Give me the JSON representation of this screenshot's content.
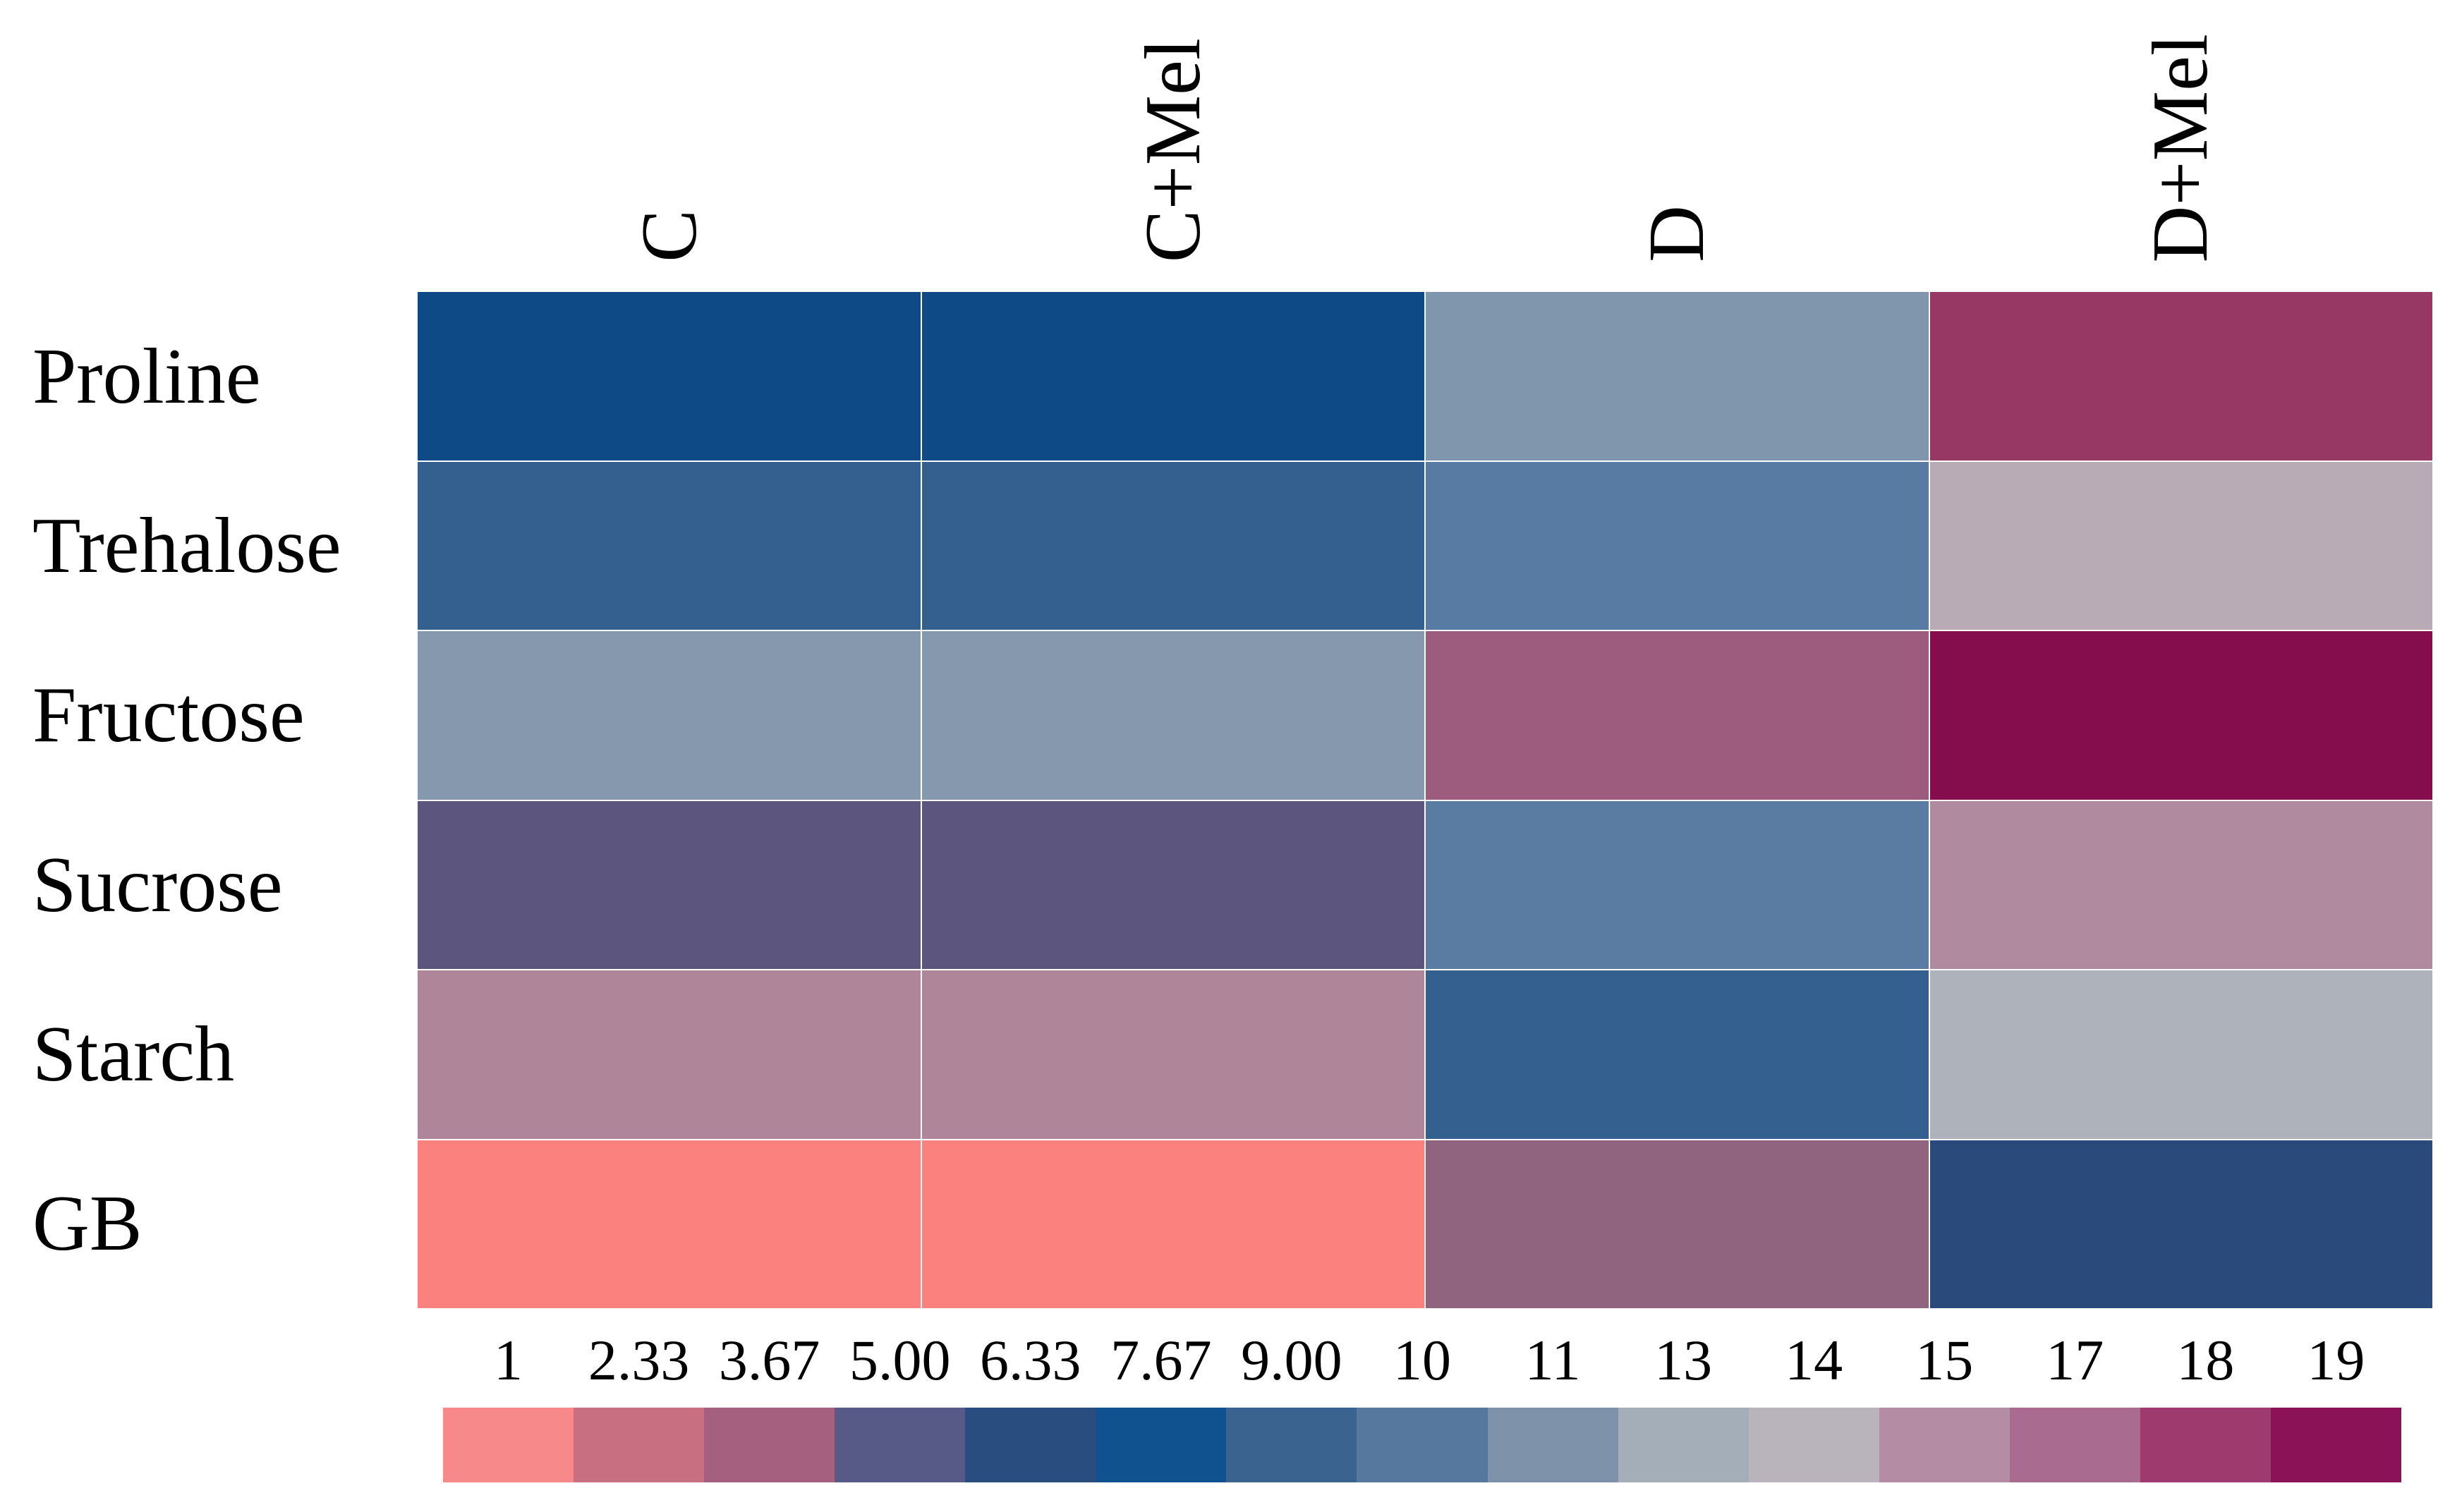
{
  "chart_data": {
    "type": "heatmap",
    "title": "",
    "columns": [
      "C",
      "C+Mel",
      "D",
      "D+Mel"
    ],
    "rows": [
      "Proline",
      "Trehalose",
      "Fructose",
      "Sucrose",
      "Starch",
      "GB"
    ],
    "series": [
      {
        "name": "Proline",
        "values": [
          7.3,
          7.3,
          11.1,
          18.2
        ],
        "colors": [
          "#0E4A86",
          "#0E4A86",
          "#8096AD",
          "#973763"
        ]
      },
      {
        "name": "Trehalose",
        "values": [
          8.9,
          8.9,
          10.1,
          14.2
        ],
        "colors": [
          "#33608F",
          "#33608F",
          "#587BA3",
          "#B8ABB5"
        ]
      },
      {
        "name": "Fructose",
        "values": [
          11.2,
          11.2,
          17.3,
          19.0
        ],
        "colors": [
          "#8598AE",
          "#8598AE",
          "#9D5C7E",
          "#850D4D"
        ]
      },
      {
        "name": "Sucrose",
        "values": [
          5.0,
          5.0,
          10.1,
          15.1
        ],
        "colors": [
          "#5C557E",
          "#5C557E",
          "#5A7BA2",
          "#B08A9E"
        ]
      },
      {
        "name": "Starch",
        "values": [
          15.5,
          15.5,
          8.9,
          13.5
        ],
        "colors": [
          "#AE8599",
          "#AE8599",
          "#33608F",
          "#ADB2BB"
        ]
      },
      {
        "name": "GB",
        "values": [
          1.0,
          1.0,
          4.0,
          6.3
        ],
        "colors": [
          "#FB817F",
          "#FB817F",
          "#90647F",
          "#2A4A7C"
        ]
      }
    ],
    "value_scale": {
      "range": [
        1,
        19
      ],
      "legend_position": "bottom",
      "tick_labels": [
        "1",
        "2.33",
        "3.67",
        "5.00",
        "6.33",
        "7.67",
        "9.00",
        "10",
        "11",
        "13",
        "14",
        "15",
        "17",
        "18",
        "19"
      ],
      "segment_colors": [
        "#F8898B",
        "#C87082",
        "#A5607F",
        "#575A86",
        "#2A4D7F",
        "#10518F",
        "#3A648F",
        "#56789E",
        "#7E92A9",
        "#A3AEB9",
        "#B9B3BC",
        "#B48CA4",
        "#A96C90",
        "#9E3A6D",
        "#8C1257"
      ]
    },
    "layout": {
      "grid": false,
      "cell_gap_color": "#FFFFFF",
      "background": "#FFFFFF"
    }
  }
}
